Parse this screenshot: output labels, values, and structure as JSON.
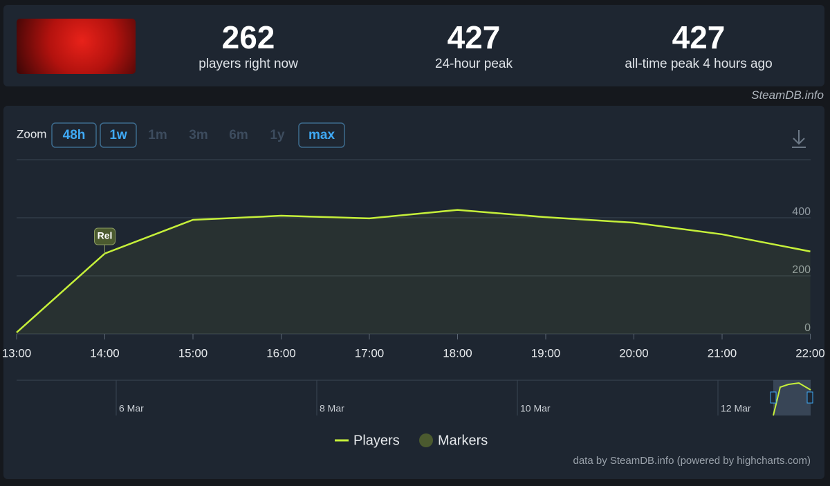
{
  "header": {
    "stats": [
      {
        "value": "262",
        "label": "players right now"
      },
      {
        "value": "427",
        "label": "24-hour peak"
      },
      {
        "value": "427",
        "label": "all-time peak 4 hours ago"
      }
    ],
    "credit": "SteamDB.info"
  },
  "chart_data": {
    "type": "line",
    "zoom_label": "Zoom",
    "zoom_buttons": [
      {
        "label": "48h",
        "enabled": true
      },
      {
        "label": "1w",
        "enabled": true
      },
      {
        "label": "1m",
        "enabled": false
      },
      {
        "label": "3m",
        "enabled": false
      },
      {
        "label": "6m",
        "enabled": false
      },
      {
        "label": "1y",
        "enabled": false
      },
      {
        "label": "max",
        "enabled": true
      }
    ],
    "categories": [
      "13:00",
      "14:00",
      "15:00",
      "16:00",
      "17:00",
      "18:00",
      "19:00",
      "20:00",
      "21:00",
      "22:00"
    ],
    "series": [
      {
        "name": "Players",
        "color": "#c6f03a",
        "values": [
          5,
          277,
          393,
          407,
          398,
          427,
          402,
          383,
          343,
          284
        ]
      }
    ],
    "markers": [
      {
        "label": "Rel",
        "category": "14:00",
        "name": "Markers",
        "color": "#4b5a2f"
      }
    ],
    "ylim": [
      0,
      600
    ],
    "yticks": [
      0,
      200,
      400
    ],
    "grid": true,
    "navigator_labels": [
      "6 Mar",
      "8 Mar",
      "10 Mar",
      "12 Mar"
    ],
    "credits": "data by SteamDB.info (powered by highcharts.com)"
  }
}
